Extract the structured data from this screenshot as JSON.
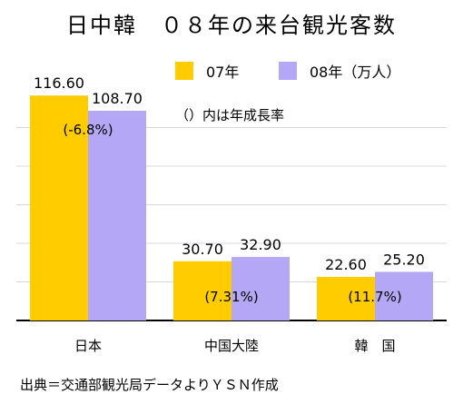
{
  "title": "日中韓　０８年の来台観光客数",
  "note": "（）内は年成長率",
  "source": "出典＝交通部観光局データよりＹＳＮ作成",
  "colors": {
    "series_07": "#ffcc00",
    "series_08": "#b4a7f5",
    "grid": "#d8d8d8",
    "axis": "#000000"
  },
  "chart_data": {
    "type": "bar",
    "categories": [
      "日本",
      "中国大陸",
      "韓　国"
    ],
    "series": [
      {
        "name": "07年",
        "values": [
          116.6,
          30.7,
          22.6
        ]
      },
      {
        "name": "08年（万人）",
        "values": [
          108.7,
          32.9,
          25.2
        ]
      }
    ],
    "value_labels": [
      [
        "116.60",
        "30.70",
        "22.60"
      ],
      [
        "108.70",
        "32.90",
        "25.20"
      ]
    ],
    "growth_labels": [
      "(-6.8%)",
      "(7.31%)",
      "(11.7%)"
    ],
    "ylim": [
      0,
      120
    ],
    "grid": true,
    "legend": "top"
  }
}
